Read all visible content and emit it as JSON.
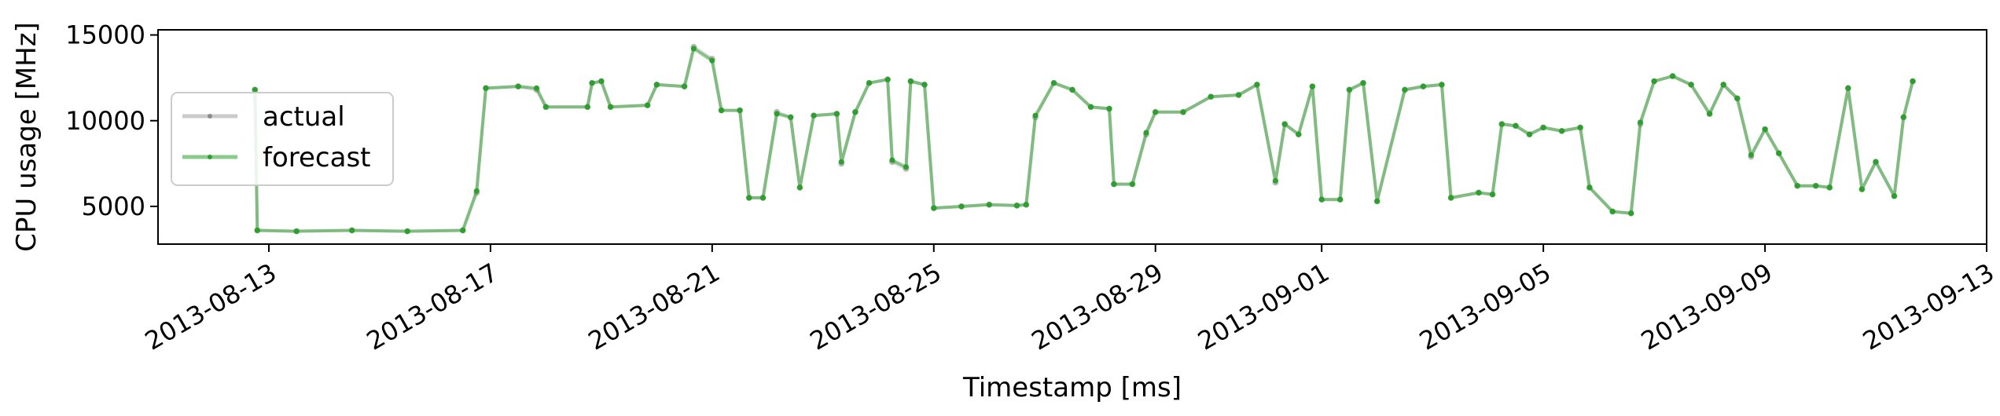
{
  "chart_data": {
    "type": "line",
    "title": "",
    "xlabel": "Timestamp [ms]",
    "ylabel": "CPU usage [MHz]",
    "xlim": [
      "2013-08-11",
      "2013-09-13"
    ],
    "ylim": [
      2800,
      15300
    ],
    "xticks": [
      "2013-08-13",
      "2013-08-17",
      "2013-08-21",
      "2013-08-25",
      "2013-08-29",
      "2013-09-01",
      "2013-09-05",
      "2013-09-09",
      "2013-09-13"
    ],
    "yticks": [
      5000,
      10000,
      15000
    ],
    "grid": false,
    "legend": "center-left",
    "colors": {
      "actual": "#8c8c8c",
      "forecast": "#2ca02c"
    },
    "series": [
      {
        "name": "actual",
        "points": [
          [
            "2013-08-12 18:00",
            11800
          ],
          [
            "2013-08-12 19:00",
            3600
          ],
          [
            "2013-08-13 12:00",
            3550
          ],
          [
            "2013-08-14 12:00",
            3600
          ],
          [
            "2013-08-15 12:00",
            3550
          ],
          [
            "2013-08-16 12:00",
            3600
          ],
          [
            "2013-08-16 18:00",
            5800
          ],
          [
            "2013-08-16 22:00",
            11900
          ],
          [
            "2013-08-17 12:00",
            12000
          ],
          [
            "2013-08-17 20:00",
            11800
          ],
          [
            "2013-08-18 00:00",
            10800
          ],
          [
            "2013-08-18 18:00",
            10800
          ],
          [
            "2013-08-18 20:00",
            12200
          ],
          [
            "2013-08-19 00:00",
            12300
          ],
          [
            "2013-08-19 04:00",
            10800
          ],
          [
            "2013-08-19 20:00",
            10900
          ],
          [
            "2013-08-20 00:00",
            12100
          ],
          [
            "2013-08-20 12:00",
            12000
          ],
          [
            "2013-08-20 16:00",
            14300
          ],
          [
            "2013-08-21 00:00",
            13600
          ],
          [
            "2013-08-21 04:00",
            10600
          ],
          [
            "2013-08-21 12:00",
            10600
          ],
          [
            "2013-08-21 16:00",
            5500
          ],
          [
            "2013-08-21 22:00",
            5500
          ],
          [
            "2013-08-22 04:00",
            10500
          ],
          [
            "2013-08-22 10:00",
            10200
          ],
          [
            "2013-08-22 14:00",
            6100
          ],
          [
            "2013-08-22 20:00",
            10300
          ],
          [
            "2013-08-23 06:00",
            10400
          ],
          [
            "2013-08-23 08:00",
            7500
          ],
          [
            "2013-08-23 14:00",
            10500
          ],
          [
            "2013-08-23 20:00",
            12200
          ],
          [
            "2013-08-24 04:00",
            12400
          ],
          [
            "2013-08-24 06:00",
            7600
          ],
          [
            "2013-08-24 12:00",
            7200
          ],
          [
            "2013-08-24 14:00",
            12300
          ],
          [
            "2013-08-24 20:00",
            12100
          ],
          [
            "2013-08-25 00:00",
            4900
          ],
          [
            "2013-08-25 12:00",
            5000
          ],
          [
            "2013-08-26 00:00",
            5100
          ],
          [
            "2013-08-26 12:00",
            5050
          ],
          [
            "2013-08-26 16:00",
            5100
          ],
          [
            "2013-08-26 20:00",
            10200
          ],
          [
            "2013-08-27 04:00",
            12200
          ],
          [
            "2013-08-27 12:00",
            11800
          ],
          [
            "2013-08-27 20:00",
            10800
          ],
          [
            "2013-08-28 04:00",
            10700
          ],
          [
            "2013-08-28 06:00",
            6300
          ],
          [
            "2013-08-28 14:00",
            6300
          ],
          [
            "2013-08-28 20:00",
            9200
          ],
          [
            "2013-08-29 00:00",
            10500
          ],
          [
            "2013-08-29 12:00",
            10500
          ],
          [
            "2013-08-30 00:00",
            11400
          ],
          [
            "2013-08-30 12:00",
            11500
          ],
          [
            "2013-08-30 20:00",
            12100
          ],
          [
            "2013-08-31 04:00",
            6400
          ],
          [
            "2013-08-31 08:00",
            9800
          ],
          [
            "2013-08-31 14:00",
            9200
          ],
          [
            "2013-08-31 20:00",
            12000
          ],
          [
            "2013-09-01 00:00",
            5400
          ],
          [
            "2013-09-01 08:00",
            5400
          ],
          [
            "2013-09-01 12:00",
            11800
          ],
          [
            "2013-09-01 18:00",
            12200
          ],
          [
            "2013-09-02 00:00",
            5300
          ],
          [
            "2013-09-02 12:00",
            11800
          ],
          [
            "2013-09-02 20:00",
            12000
          ],
          [
            "2013-09-03 04:00",
            12100
          ],
          [
            "2013-09-03 08:00",
            5500
          ],
          [
            "2013-09-03 20:00",
            5800
          ],
          [
            "2013-09-04 02:00",
            5700
          ],
          [
            "2013-09-04 06:00",
            9800
          ],
          [
            "2013-09-04 12:00",
            9700
          ],
          [
            "2013-09-04 18:00",
            9200
          ],
          [
            "2013-09-05 00:00",
            9600
          ],
          [
            "2013-09-05 08:00",
            9400
          ],
          [
            "2013-09-05 16:00",
            9600
          ],
          [
            "2013-09-05 20:00",
            6100
          ],
          [
            "2013-09-06 06:00",
            4700
          ],
          [
            "2013-09-06 14:00",
            4600
          ],
          [
            "2013-09-06 18:00",
            9800
          ],
          [
            "2013-09-07 00:00",
            12300
          ],
          [
            "2013-09-07 08:00",
            12600
          ],
          [
            "2013-09-07 16:00",
            12100
          ],
          [
            "2013-09-08 00:00",
            10400
          ],
          [
            "2013-09-08 06:00",
            12100
          ],
          [
            "2013-09-08 12:00",
            11300
          ],
          [
            "2013-09-08 18:00",
            7900
          ],
          [
            "2013-09-09 00:00",
            9500
          ],
          [
            "2013-09-09 06:00",
            8100
          ],
          [
            "2013-09-09 14:00",
            6200
          ],
          [
            "2013-09-09 22:00",
            6200
          ],
          [
            "2013-09-10 04:00",
            6100
          ],
          [
            "2013-09-10 12:00",
            11900
          ],
          [
            "2013-09-10 18:00",
            6000
          ],
          [
            "2013-09-11 00:00",
            7600
          ],
          [
            "2013-09-11 08:00",
            5600
          ],
          [
            "2013-09-11 12:00",
            10200
          ],
          [
            "2013-09-11 16:00",
            12300
          ]
        ]
      },
      {
        "name": "forecast",
        "points": [
          [
            "2013-08-12 18:00",
            11800
          ],
          [
            "2013-08-12 19:00",
            3600
          ],
          [
            "2013-08-13 12:00",
            3550
          ],
          [
            "2013-08-14 12:00",
            3600
          ],
          [
            "2013-08-15 12:00",
            3550
          ],
          [
            "2013-08-16 12:00",
            3600
          ],
          [
            "2013-08-16 18:00",
            5900
          ],
          [
            "2013-08-16 22:00",
            11900
          ],
          [
            "2013-08-17 12:00",
            12000
          ],
          [
            "2013-08-17 20:00",
            11900
          ],
          [
            "2013-08-18 00:00",
            10800
          ],
          [
            "2013-08-18 18:00",
            10800
          ],
          [
            "2013-08-18 20:00",
            12200
          ],
          [
            "2013-08-19 00:00",
            12300
          ],
          [
            "2013-08-19 04:00",
            10800
          ],
          [
            "2013-08-19 20:00",
            10900
          ],
          [
            "2013-08-20 00:00",
            12100
          ],
          [
            "2013-08-20 12:00",
            12000
          ],
          [
            "2013-08-20 16:00",
            14200
          ],
          [
            "2013-08-21 00:00",
            13500
          ],
          [
            "2013-08-21 04:00",
            10600
          ],
          [
            "2013-08-21 12:00",
            10600
          ],
          [
            "2013-08-21 16:00",
            5500
          ],
          [
            "2013-08-21 22:00",
            5500
          ],
          [
            "2013-08-22 04:00",
            10400
          ],
          [
            "2013-08-22 10:00",
            10200
          ],
          [
            "2013-08-22 14:00",
            6100
          ],
          [
            "2013-08-22 20:00",
            10300
          ],
          [
            "2013-08-23 06:00",
            10400
          ],
          [
            "2013-08-23 08:00",
            7600
          ],
          [
            "2013-08-23 14:00",
            10500
          ],
          [
            "2013-08-23 20:00",
            12200
          ],
          [
            "2013-08-24 04:00",
            12400
          ],
          [
            "2013-08-24 06:00",
            7700
          ],
          [
            "2013-08-24 12:00",
            7300
          ],
          [
            "2013-08-24 14:00",
            12300
          ],
          [
            "2013-08-24 20:00",
            12100
          ],
          [
            "2013-08-25 00:00",
            4900
          ],
          [
            "2013-08-25 12:00",
            5000
          ],
          [
            "2013-08-26 00:00",
            5100
          ],
          [
            "2013-08-26 12:00",
            5050
          ],
          [
            "2013-08-26 16:00",
            5100
          ],
          [
            "2013-08-26 20:00",
            10300
          ],
          [
            "2013-08-27 04:00",
            12200
          ],
          [
            "2013-08-27 12:00",
            11800
          ],
          [
            "2013-08-27 20:00",
            10800
          ],
          [
            "2013-08-28 04:00",
            10700
          ],
          [
            "2013-08-28 06:00",
            6300
          ],
          [
            "2013-08-28 14:00",
            6300
          ],
          [
            "2013-08-28 20:00",
            9300
          ],
          [
            "2013-08-29 00:00",
            10500
          ],
          [
            "2013-08-29 12:00",
            10500
          ],
          [
            "2013-08-30 00:00",
            11400
          ],
          [
            "2013-08-30 12:00",
            11500
          ],
          [
            "2013-08-30 20:00",
            12100
          ],
          [
            "2013-08-31 04:00",
            6500
          ],
          [
            "2013-08-31 08:00",
            9800
          ],
          [
            "2013-08-31 14:00",
            9200
          ],
          [
            "2013-08-31 20:00",
            12000
          ],
          [
            "2013-09-01 00:00",
            5400
          ],
          [
            "2013-09-01 08:00",
            5400
          ],
          [
            "2013-09-01 12:00",
            11800
          ],
          [
            "2013-09-01 18:00",
            12200
          ],
          [
            "2013-09-02 00:00",
            5300
          ],
          [
            "2013-09-02 12:00",
            11800
          ],
          [
            "2013-09-02 20:00",
            12000
          ],
          [
            "2013-09-03 04:00",
            12100
          ],
          [
            "2013-09-03 08:00",
            5500
          ],
          [
            "2013-09-03 20:00",
            5800
          ],
          [
            "2013-09-04 02:00",
            5700
          ],
          [
            "2013-09-04 06:00",
            9800
          ],
          [
            "2013-09-04 12:00",
            9700
          ],
          [
            "2013-09-04 18:00",
            9200
          ],
          [
            "2013-09-05 00:00",
            9600
          ],
          [
            "2013-09-05 08:00",
            9400
          ],
          [
            "2013-09-05 16:00",
            9600
          ],
          [
            "2013-09-05 20:00",
            6100
          ],
          [
            "2013-09-06 06:00",
            4700
          ],
          [
            "2013-09-06 14:00",
            4600
          ],
          [
            "2013-09-06 18:00",
            9900
          ],
          [
            "2013-09-07 00:00",
            12300
          ],
          [
            "2013-09-07 08:00",
            12600
          ],
          [
            "2013-09-07 16:00",
            12100
          ],
          [
            "2013-09-08 00:00",
            10400
          ],
          [
            "2013-09-08 06:00",
            12100
          ],
          [
            "2013-09-08 12:00",
            11300
          ],
          [
            "2013-09-08 18:00",
            8000
          ],
          [
            "2013-09-09 00:00",
            9500
          ],
          [
            "2013-09-09 06:00",
            8100
          ],
          [
            "2013-09-09 14:00",
            6200
          ],
          [
            "2013-09-09 22:00",
            6200
          ],
          [
            "2013-09-10 04:00",
            6100
          ],
          [
            "2013-09-10 12:00",
            11900
          ],
          [
            "2013-09-10 18:00",
            6000
          ],
          [
            "2013-09-11 00:00",
            7600
          ],
          [
            "2013-09-11 08:00",
            5600
          ],
          [
            "2013-09-11 12:00",
            10200
          ],
          [
            "2013-09-11 16:00",
            12300
          ]
        ]
      }
    ]
  }
}
